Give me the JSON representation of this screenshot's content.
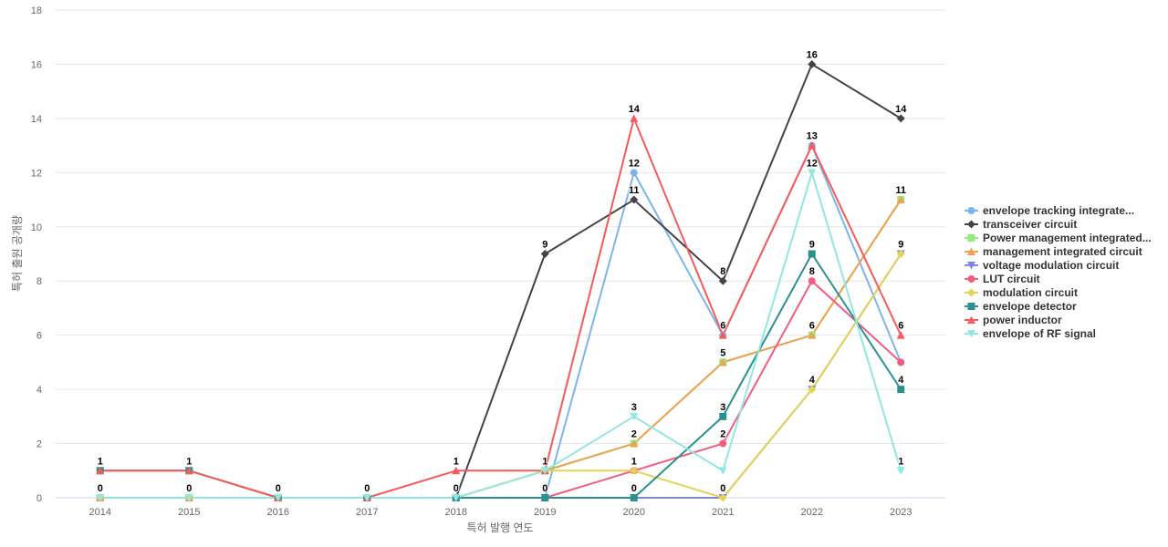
{
  "chart_data": {
    "type": "line",
    "xlabel": "특허 발행 연도",
    "ylabel": "특허 출원 공개량",
    "ylim": [
      0,
      18
    ],
    "yticks": [
      0,
      2,
      4,
      6,
      8,
      10,
      12,
      14,
      16,
      18
    ],
    "grid": true,
    "legend_position": "right",
    "categories": [
      "2014",
      "2015",
      "2016",
      "2017",
      "2018",
      "2019",
      "2020",
      "2021",
      "2022",
      "2023"
    ],
    "series": [
      {
        "name": "envelope tracking integrate...",
        "color": "#7cb5ec",
        "marker": "circle",
        "values": [
          0,
          0,
          0,
          0,
          0,
          0,
          12,
          6,
          13,
          5
        ],
        "labels": [
          false,
          false,
          false,
          false,
          false,
          false,
          true,
          false,
          false,
          false
        ]
      },
      {
        "name": "transceiver circuit",
        "color": "#434348",
        "marker": "diamond",
        "values": [
          0,
          0,
          0,
          0,
          0,
          9,
          11,
          8,
          16,
          14
        ],
        "labels": [
          false,
          false,
          false,
          false,
          false,
          true,
          true,
          true,
          true,
          true
        ]
      },
      {
        "name": "Power management integrated...",
        "color": "#90ed7d",
        "marker": "square",
        "values": [
          0,
          0,
          0,
          0,
          0,
          1,
          2,
          5,
          6,
          11
        ],
        "labels": [
          false,
          false,
          false,
          false,
          false,
          false,
          false,
          false,
          false,
          false
        ]
      },
      {
        "name": "management integrated circuit",
        "color": "#f0a150",
        "marker": "triangle",
        "values": [
          0,
          0,
          0,
          0,
          0,
          1,
          2,
          5,
          6,
          11
        ],
        "labels": [
          false,
          false,
          false,
          false,
          false,
          false,
          true,
          true,
          true,
          true
        ]
      },
      {
        "name": "voltage modulation circuit",
        "color": "#8085e9",
        "marker": "triangle-down",
        "values": [
          0,
          0,
          0,
          0,
          0,
          0,
          0,
          0,
          4,
          9
        ],
        "labels": [
          false,
          false,
          false,
          false,
          false,
          false,
          false,
          false,
          false,
          false
        ]
      },
      {
        "name": "LUT circuit",
        "color": "#f15c80",
        "marker": "circle",
        "values": [
          0,
          0,
          0,
          0,
          0,
          0,
          1,
          2,
          8,
          5
        ],
        "labels": [
          false,
          false,
          false,
          false,
          false,
          false,
          true,
          true,
          true,
          false
        ]
      },
      {
        "name": "modulation circuit",
        "color": "#e4d354",
        "marker": "diamond",
        "values": [
          0,
          0,
          0,
          0,
          0,
          1,
          1,
          0,
          4,
          9
        ],
        "labels": [
          false,
          false,
          false,
          false,
          false,
          false,
          false,
          true,
          true,
          true
        ]
      },
      {
        "name": "envelope detector",
        "color": "#2b908f",
        "marker": "square",
        "values": [
          1,
          1,
          0,
          0,
          0,
          0,
          0,
          3,
          9,
          4
        ],
        "labels": [
          false,
          false,
          false,
          false,
          true,
          true,
          true,
          true,
          true,
          true
        ]
      },
      {
        "name": "power inductor",
        "color": "#f45b5b",
        "marker": "triangle",
        "values": [
          1,
          1,
          0,
          0,
          1,
          1,
          14,
          6,
          13,
          6
        ],
        "labels": [
          true,
          true,
          true,
          true,
          true,
          true,
          true,
          true,
          true,
          true
        ]
      },
      {
        "name": "envelope of RF signal",
        "color": "#91e8e1",
        "marker": "triangle-down",
        "values": [
          0,
          0,
          0,
          0,
          0,
          1,
          3,
          1,
          12,
          1
        ],
        "labels": [
          true,
          true,
          false,
          false,
          false,
          false,
          true,
          false,
          true,
          true
        ]
      }
    ]
  }
}
